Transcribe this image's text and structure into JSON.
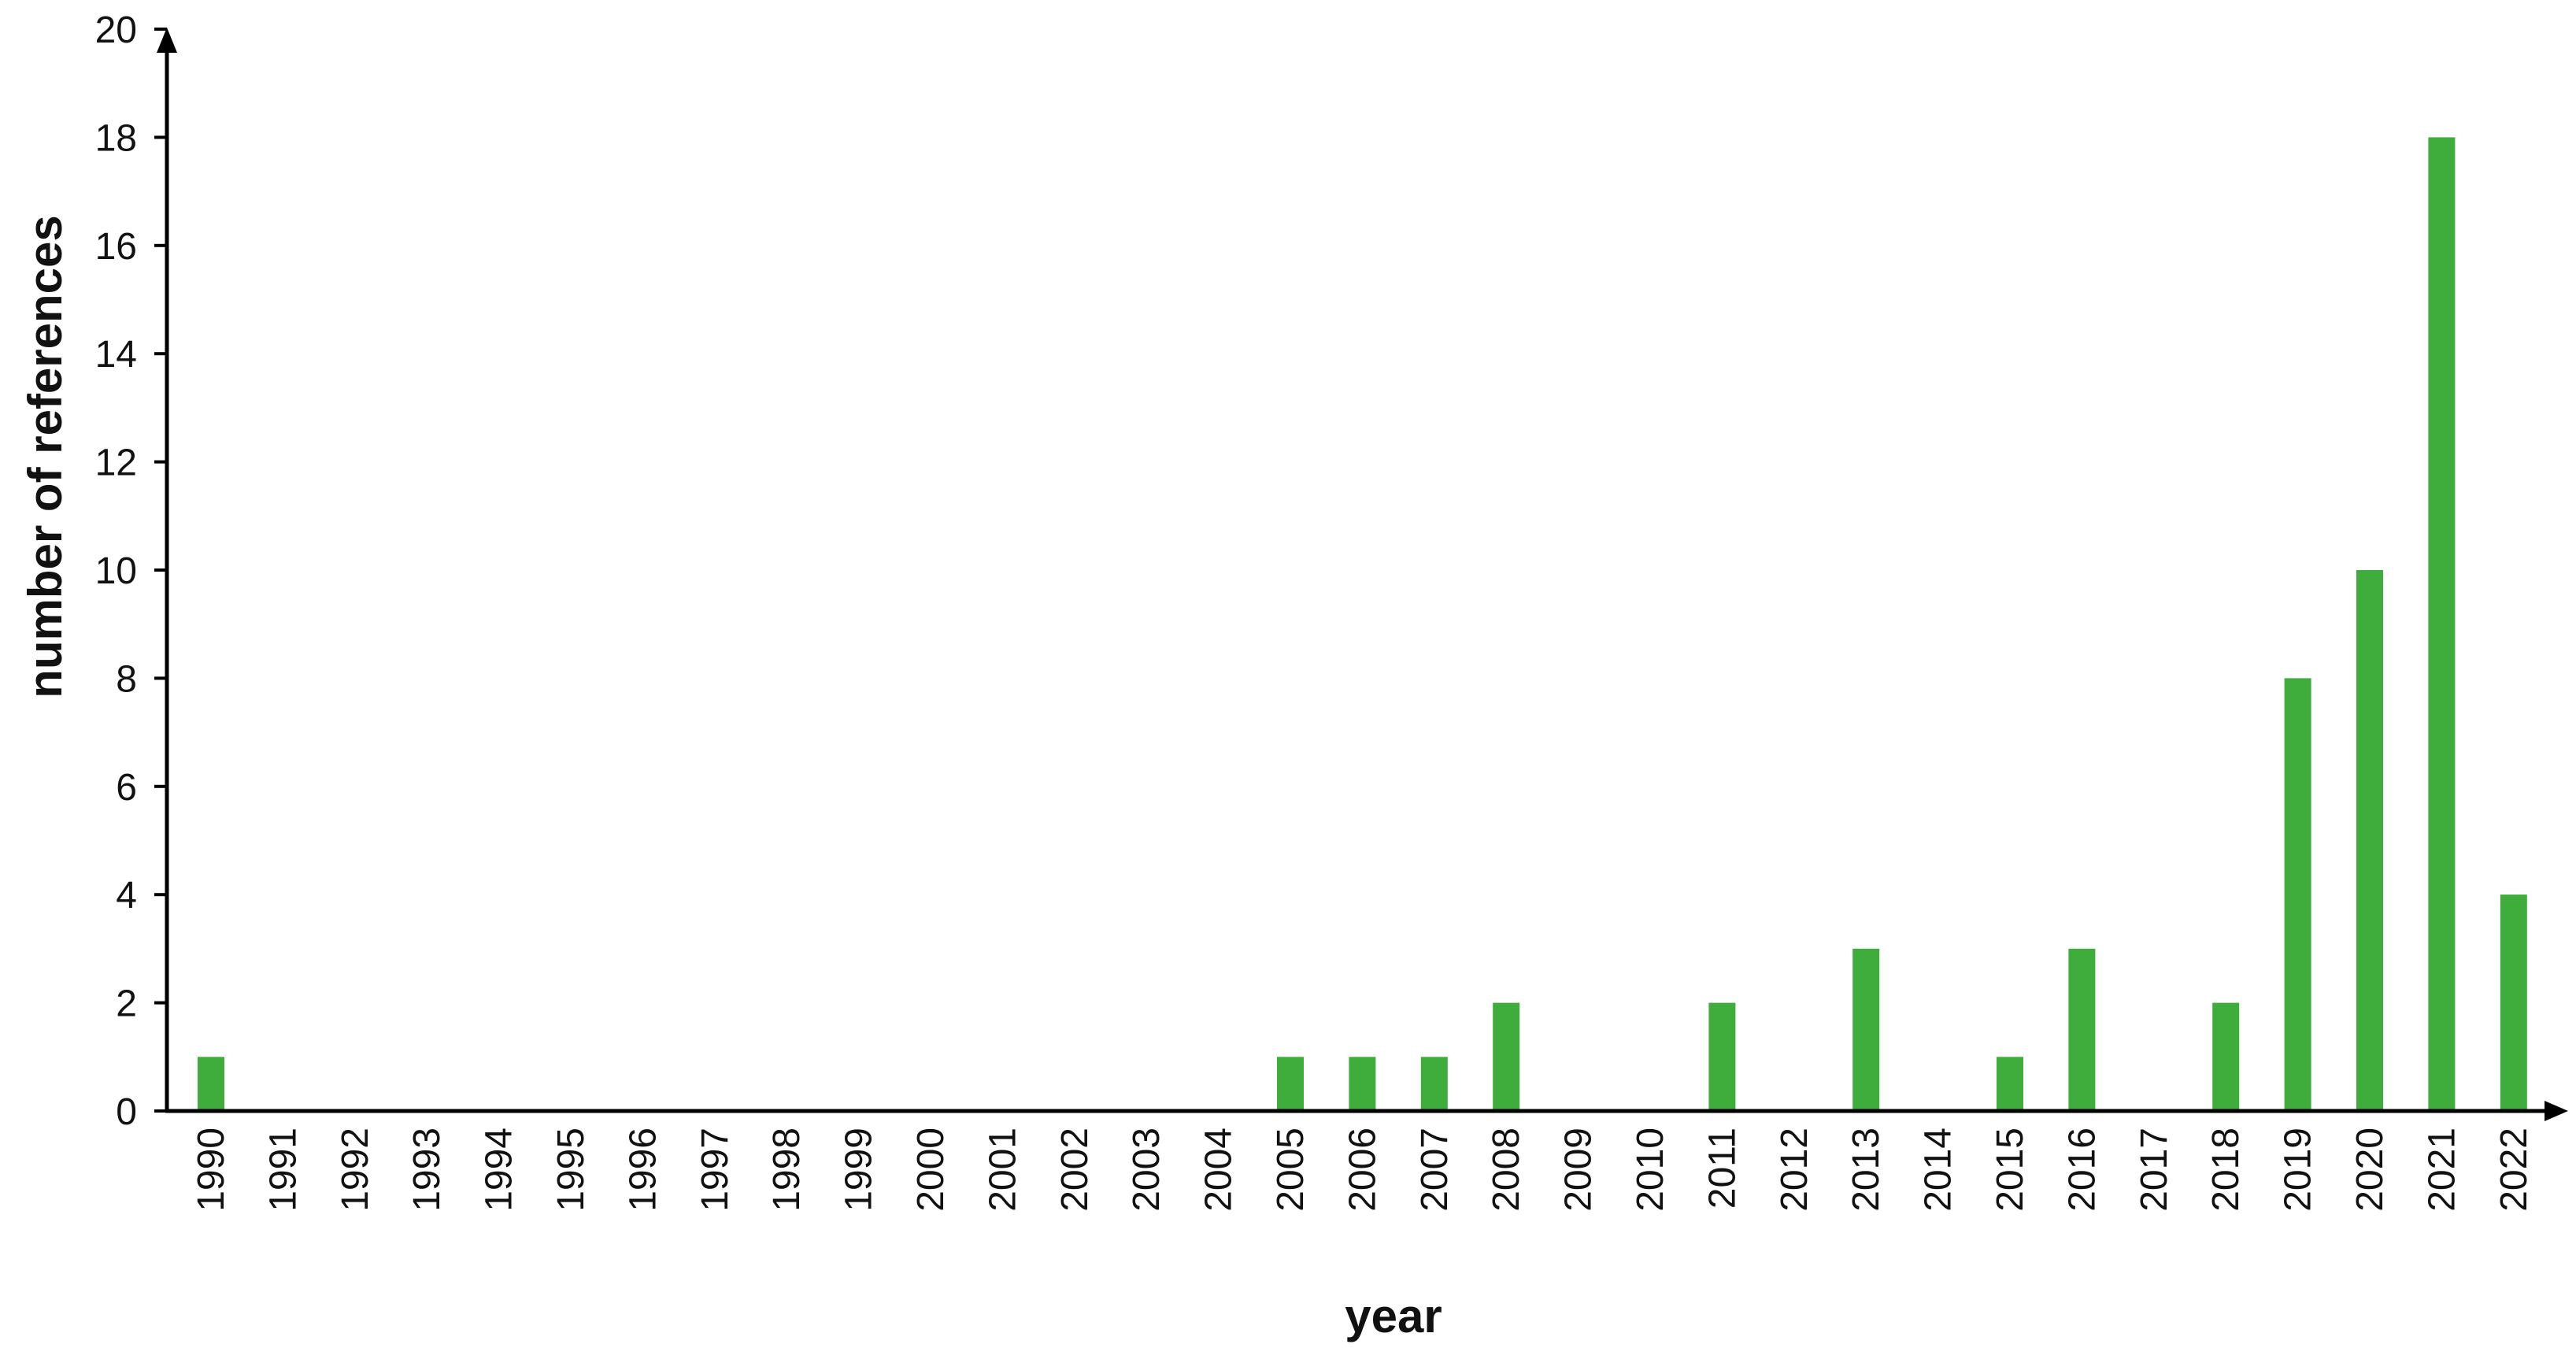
{
  "chart_data": {
    "type": "bar",
    "title": "",
    "xlabel": "year",
    "ylabel": "number of references",
    "ylim": [
      0,
      20
    ],
    "yticks": [
      0,
      2,
      4,
      6,
      8,
      10,
      12,
      14,
      16,
      18,
      20
    ],
    "grid": false,
    "legend": "none",
    "bar_color": "#3fad3b",
    "categories": [
      "1990",
      "1991",
      "1992",
      "1993",
      "1994",
      "1995",
      "1996",
      "1997",
      "1998",
      "1999",
      "2000",
      "2001",
      "2002",
      "2003",
      "2004",
      "2005",
      "2006",
      "2007",
      "2008",
      "2009",
      "2010",
      "2011",
      "2012",
      "2013",
      "2014",
      "2015",
      "2016",
      "2017",
      "2018",
      "2019",
      "2020",
      "2021",
      "2022"
    ],
    "values": [
      1,
      0,
      0,
      0,
      0,
      0,
      0,
      0,
      0,
      0,
      0,
      0,
      0,
      0,
      0,
      1,
      1,
      1,
      2,
      0,
      0,
      2,
      0,
      3,
      0,
      1,
      3,
      0,
      2,
      8,
      10,
      18,
      4
    ]
  }
}
